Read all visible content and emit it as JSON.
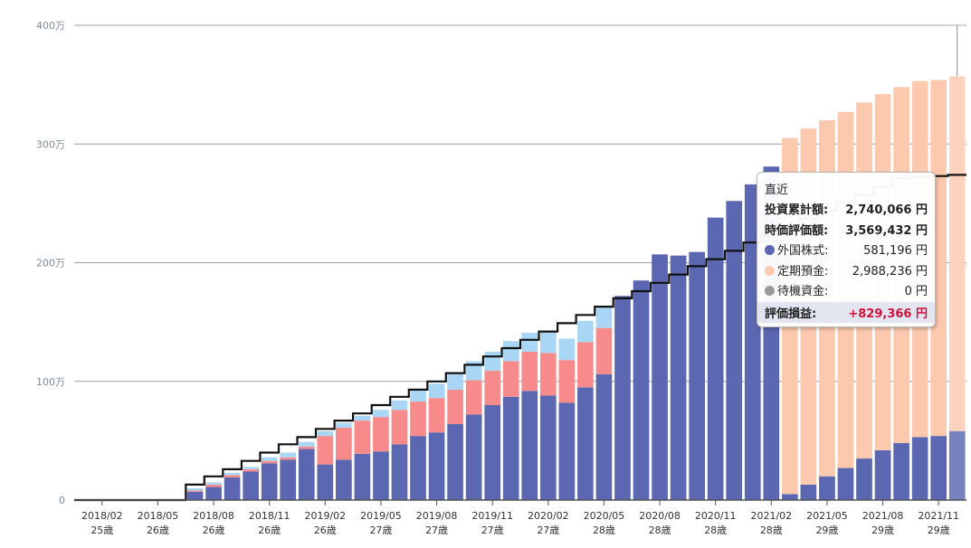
{
  "chart_data": {
    "type": "bar",
    "stacked": true,
    "ylim": [
      0,
      4000000
    ],
    "y_ticks": [
      {
        "value": 0,
        "label": "0"
      },
      {
        "value": 1000000,
        "label": "100万"
      },
      {
        "value": 2000000,
        "label": "200万"
      },
      {
        "value": 3000000,
        "label": "300万"
      },
      {
        "value": 4000000,
        "label": "400万"
      }
    ],
    "x_ticks": [
      {
        "index": 1,
        "label": "2018/02",
        "age": "25歳"
      },
      {
        "index": 4,
        "label": "2018/05",
        "age": "26歳"
      },
      {
        "index": 7,
        "label": "2018/08",
        "age": "26歳"
      },
      {
        "index": 10,
        "label": "2018/11",
        "age": "26歳"
      },
      {
        "index": 13,
        "label": "2019/02",
        "age": "26歳"
      },
      {
        "index": 16,
        "label": "2019/05",
        "age": "27歳"
      },
      {
        "index": 19,
        "label": "2019/08",
        "age": "27歳"
      },
      {
        "index": 22,
        "label": "2019/11",
        "age": "27歳"
      },
      {
        "index": 25,
        "label": "2020/02",
        "age": "27歳"
      },
      {
        "index": 28,
        "label": "2020/05",
        "age": "28歳"
      },
      {
        "index": 31,
        "label": "2020/08",
        "age": "28歳"
      },
      {
        "index": 34,
        "label": "2020/11",
        "age": "28歳"
      },
      {
        "index": 37,
        "label": "2021/02",
        "age": "28歳"
      },
      {
        "index": 40,
        "label": "2021/05",
        "age": "29歳"
      },
      {
        "index": 43,
        "label": "2021/08",
        "age": "29歳"
      },
      {
        "index": 46,
        "label": "2021/11",
        "age": "29歳"
      }
    ],
    "categories": [
      "2018/01",
      "2018/02",
      "2018/03",
      "2018/04",
      "2018/05",
      "2018/06",
      "2018/07",
      "2018/08",
      "2018/09",
      "2018/10",
      "2018/11",
      "2018/12",
      "2019/01",
      "2019/02",
      "2019/03",
      "2019/04",
      "2019/05",
      "2019/06",
      "2019/07",
      "2019/08",
      "2019/09",
      "2019/10",
      "2019/11",
      "2019/12",
      "2020/01",
      "2020/02",
      "2020/03",
      "2020/04",
      "2020/05",
      "2020/06",
      "2020/07",
      "2020/08",
      "2020/09",
      "2020/10",
      "2020/11",
      "2020/12",
      "2021/01",
      "2021/02",
      "2021/03",
      "2021/04",
      "2021/05",
      "2021/06",
      "2021/07",
      "2021/08",
      "2021/09",
      "2021/10",
      "2021/11",
      "2021/12"
    ],
    "series": [
      {
        "name": "外国株式",
        "color": "#5b67b0",
        "values": [
          0,
          0,
          0,
          0,
          0,
          0,
          70000,
          110000,
          190000,
          240000,
          310000,
          340000,
          430000,
          300000,
          340000,
          390000,
          410000,
          470000,
          540000,
          570000,
          640000,
          720000,
          800000,
          870000,
          920000,
          880000,
          820000,
          950000,
          1060000,
          1720000,
          1850000,
          2070000,
          2060000,
          2090000,
          2380000,
          2520000,
          2660000,
          2810000,
          50000,
          130000,
          200000,
          270000,
          350000,
          420000,
          480000,
          530000,
          540000,
          581196
        ]
      },
      {
        "name": "定期預金",
        "color": "#f78b8b",
        "values": [
          0,
          0,
          0,
          0,
          0,
          0,
          10000,
          20000,
          20000,
          20000,
          20000,
          20000,
          20000,
          240000,
          270000,
          280000,
          290000,
          290000,
          290000,
          290000,
          290000,
          290000,
          290000,
          300000,
          330000,
          360000,
          360000,
          380000,
          390000,
          0,
          0,
          0,
          0,
          0,
          0,
          0,
          0,
          0,
          0,
          0,
          0,
          0,
          0,
          0,
          0,
          0,
          0,
          0
        ]
      },
      {
        "name": "定期預金",
        "color": "#fdc9ae",
        "values": [
          0,
          0,
          0,
          0,
          0,
          0,
          0,
          0,
          0,
          0,
          0,
          0,
          0,
          0,
          0,
          0,
          0,
          0,
          0,
          0,
          0,
          0,
          0,
          0,
          0,
          0,
          0,
          0,
          0,
          0,
          0,
          0,
          0,
          0,
          0,
          0,
          0,
          0,
          3000000,
          3000000,
          3000000,
          3000000,
          3000000,
          3000000,
          3000000,
          3000000,
          3000000,
          2988236
        ]
      },
      {
        "name": "待機資金",
        "color": "#a9d6f5",
        "values": [
          0,
          0,
          0,
          0,
          0,
          0,
          20000,
          20000,
          20000,
          20000,
          30000,
          40000,
          40000,
          40000,
          40000,
          40000,
          60000,
          80000,
          100000,
          120000,
          140000,
          160000,
          160000,
          170000,
          160000,
          180000,
          180000,
          180000,
          180000,
          0,
          0,
          0,
          0,
          0,
          0,
          0,
          0,
          0,
          0,
          0,
          0,
          0,
          0,
          0,
          0,
          0,
          0,
          0
        ]
      }
    ],
    "cumulative_investment": [
      0,
      0,
      0,
      0,
      0,
      0,
      130000,
      200000,
      260000,
      330000,
      400000,
      470000,
      530000,
      600000,
      670000,
      730000,
      800000,
      870000,
      930000,
      1000000,
      1070000,
      1140000,
      1210000,
      1280000,
      1350000,
      1420000,
      1490000,
      1560000,
      1630000,
      1700000,
      1760000,
      1830000,
      1900000,
      1970000,
      2030000,
      2100000,
      2170000,
      2230000,
      2300000,
      2370000,
      2440000,
      2510000,
      2570000,
      2640000,
      2710000,
      2720000,
      2730000,
      2740066
    ]
  },
  "tooltip": {
    "title": "直近",
    "invest_label": "投資累計額:",
    "invest_value": "2,740,066 円",
    "market_label": "時価評価額:",
    "market_value": "3,569,432 円",
    "items": [
      {
        "label": "外国株式:",
        "value": "581,196 円",
        "color": "#5b67b0"
      },
      {
        "label": "定期預金:",
        "value": "2,988,236 円",
        "color": "#fdc9ae"
      },
      {
        "label": "待機資金:",
        "value": "0 円",
        "color": "#999999"
      }
    ],
    "gain_label": "評価損益:",
    "gain_value": "+829,366 円"
  }
}
